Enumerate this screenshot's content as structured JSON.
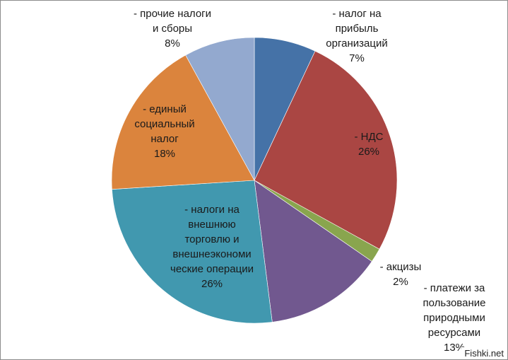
{
  "chart_data": {
    "type": "pie",
    "title": "",
    "start_angle_deg": 0,
    "direction": "clockwise",
    "slices": [
      {
        "label_lines": [
          "- налог на",
          "прибыль",
          "организаций"
        ],
        "percent_label": "7%",
        "value": 7,
        "color": "#4572a7"
      },
      {
        "label_lines": [
          "- НДС"
        ],
        "percent_label": "26%",
        "value": 26,
        "color": "#aa4643"
      },
      {
        "label_lines": [
          "- акцизы"
        ],
        "percent_label": "2%",
        "value": 1.6,
        "color": "#89a54e"
      },
      {
        "label_lines": [
          "- платежи за",
          "пользование",
          "природными",
          "ресурсами"
        ],
        "percent_label": "13%",
        "value": 13.4,
        "color": "#71588f"
      },
      {
        "label_lines": [
          "- налоги на",
          "внешнюю",
          "торговлю и",
          "внешнеэкономи",
          "ческие операции"
        ],
        "percent_label": "26%",
        "value": 26,
        "color": "#4198af"
      },
      {
        "label_lines": [
          "- единый",
          "социальный",
          "налог"
        ],
        "percent_label": "18%",
        "value": 18,
        "color": "#db843d"
      },
      {
        "label_lines": [
          "- прочие налоги",
          "и сборы"
        ],
        "percent_label": "8%",
        "value": 8,
        "color": "#93a9cf"
      }
    ]
  },
  "watermark": "Fishki.net"
}
